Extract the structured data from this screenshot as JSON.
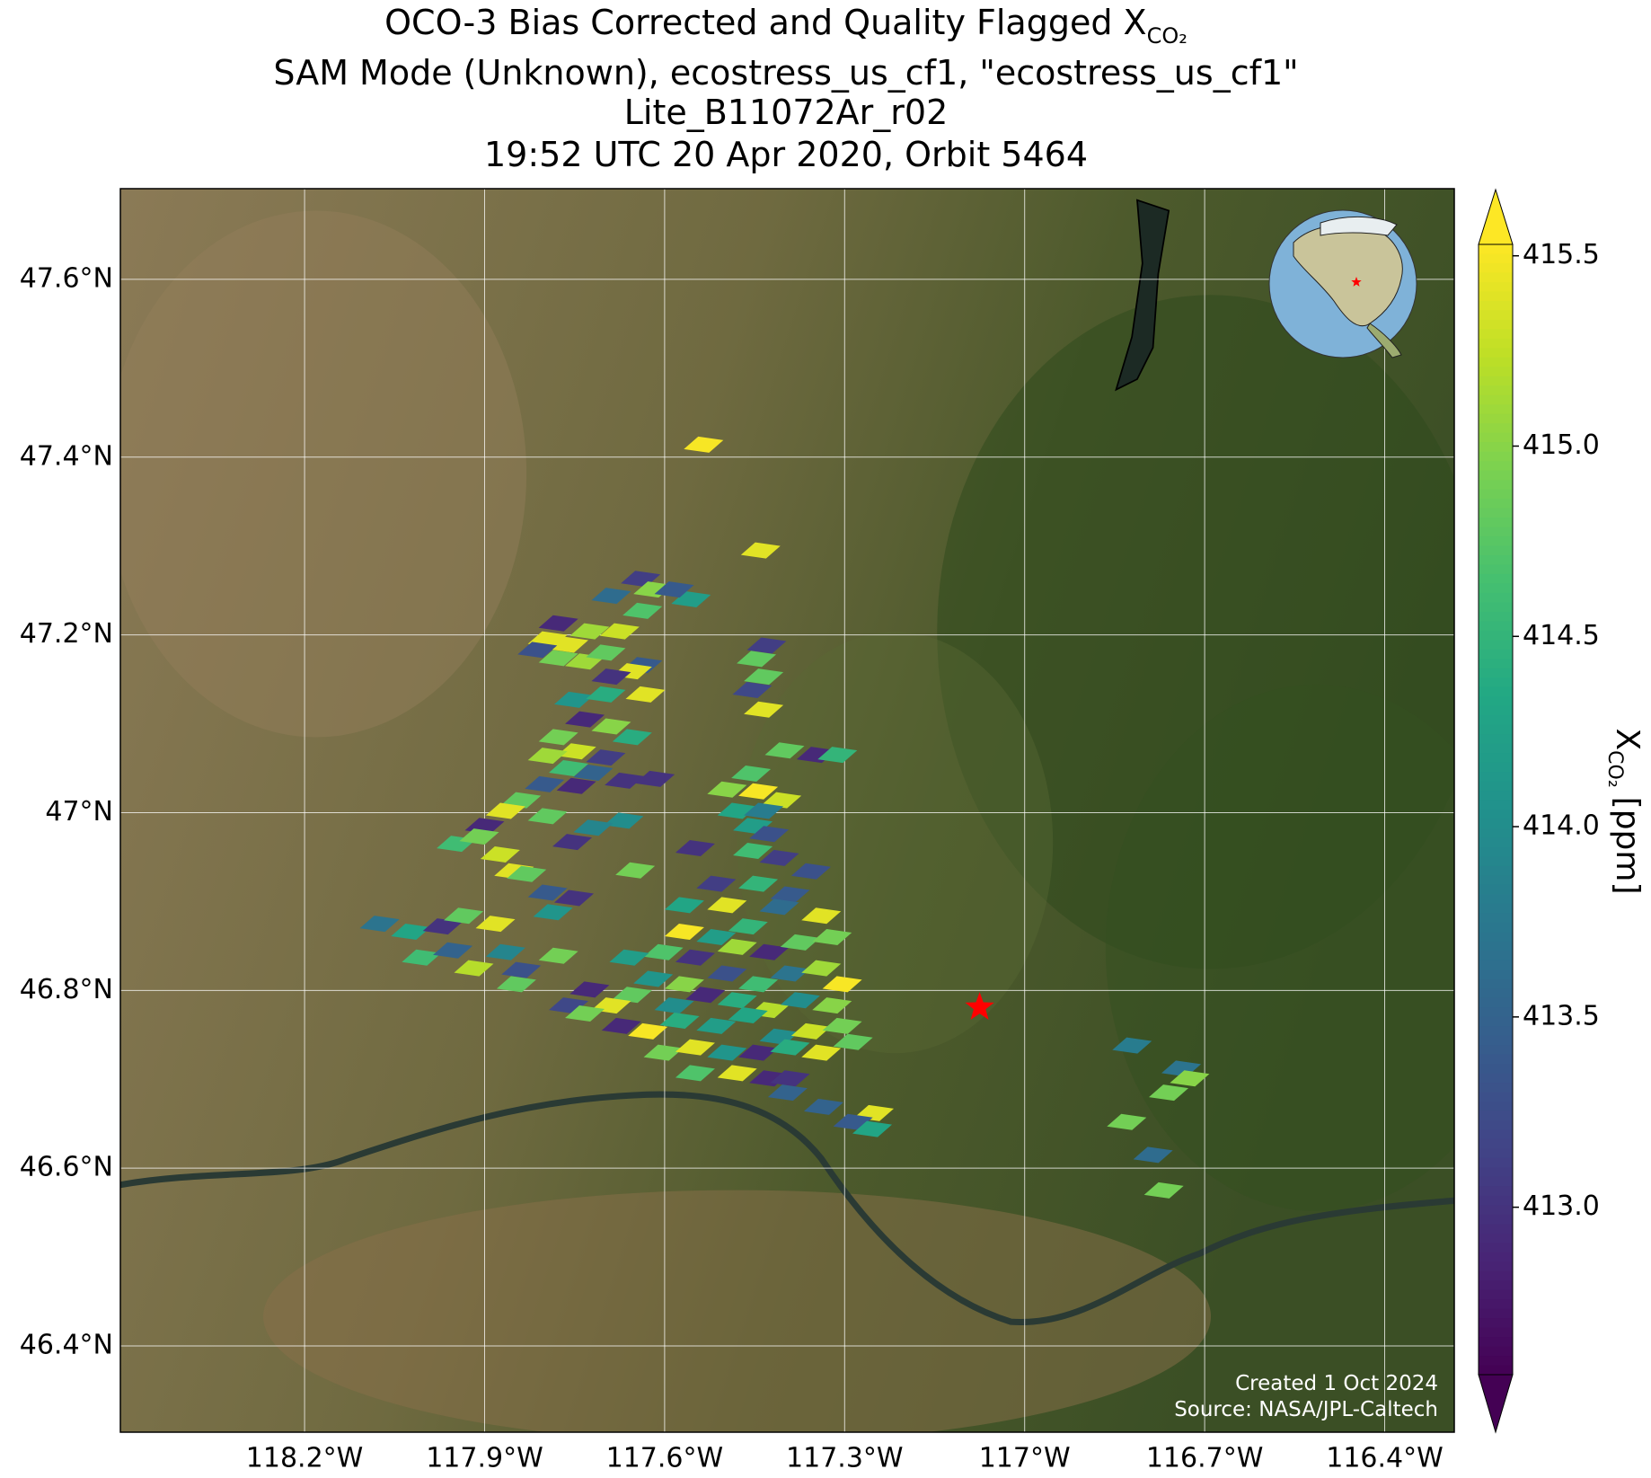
{
  "chart_data": {
    "type": "map",
    "title": "OCO-3 Bias Corrected and Quality Flagged X",
    "title_subscript": "CO₂",
    "subtitle_lines": [
      "SAM Mode (Unknown), ecostress_us_cf1, \"ecostress_us_cf1\"",
      "Lite_B11072Ar_r02",
      "19:52 UTC 20 Apr 2020, Orbit 5464"
    ],
    "xlim": [
      -118.507,
      -116.284
    ],
    "ylim": [
      46.303,
      47.702
    ],
    "xticks": [
      {
        "value": -118.2,
        "label": "118.2°W"
      },
      {
        "value": -117.9,
        "label": "117.9°W"
      },
      {
        "value": -117.6,
        "label": "117.6°W"
      },
      {
        "value": -117.3,
        "label": "117.3°W"
      },
      {
        "value": -117,
        "label": "117°W"
      },
      {
        "value": -116.7,
        "label": "116.7°W"
      },
      {
        "value": -116.4,
        "label": "116.4°W"
      }
    ],
    "yticks": [
      {
        "value": 46.4,
        "label": "46.4°N"
      },
      {
        "value": 46.6,
        "label": "46.6°N"
      },
      {
        "value": 46.8,
        "label": "46.8°N"
      },
      {
        "value": 47,
        "label": "47°N"
      },
      {
        "value": 47.2,
        "label": "47.2°N"
      },
      {
        "value": 47.4,
        "label": "47.4°N"
      },
      {
        "value": 47.6,
        "label": "47.6°N"
      }
    ],
    "grid": true,
    "grid_color": "#ffffff",
    "colormap": "viridis",
    "clim": [
      412.56,
      415.53
    ],
    "colorbar_extend": "both",
    "colorbar_ticks": [
      {
        "value": 413,
        "label": "413.0"
      },
      413.5,
      {
        "value": 414,
        "label": "414.0"
      },
      414.5,
      {
        "value": 415,
        "label": "415.0"
      },
      415.5
    ],
    "colorbar_label": "X",
    "colorbar_label_subscript": "CO₂",
    "colorbar_units": "[ppm]",
    "target": {
      "lon": -117.075,
      "lat": 46.781,
      "color": "#ff0000"
    },
    "credits": [
      "Created 1 Oct 2024",
      "Source: NASA/JPL-Caltech"
    ],
    "footprints": {
      "lon": [
        -117.535,
        -117.44,
        -117.64,
        -117.619,
        -117.689,
        -117.637,
        -117.556,
        -117.584,
        -117.777,
        -117.795,
        -117.76,
        -117.725,
        -117.675,
        -117.812,
        -117.777,
        -117.733,
        -117.698,
        -117.637,
        -117.654,
        -117.689,
        -117.43,
        -117.447,
        -117.435,
        -117.632,
        -117.751,
        -117.698,
        -117.454,
        -117.435,
        -117.733,
        -117.689,
        -117.777,
        -117.654,
        -117.747,
        -117.698,
        -117.795,
        -117.76,
        -117.719,
        -117.8,
        -117.747,
        -117.667,
        -117.616,
        -117.4,
        -117.347,
        -117.312,
        -117.456,
        -117.496,
        -117.444,
        -117.405,
        -117.479,
        -117.435,
        -117.839,
        -117.865,
        -117.9,
        -117.795,
        -117.668,
        -117.719,
        -117.754,
        -117.947,
        -117.909,
        -117.874,
        -117.549,
        -117.453,
        -117.409,
        -117.356,
        -117.649,
        -117.851,
        -117.83,
        -117.795,
        -117.751,
        -117.786,
        -118.075,
        -118.023,
        -117.97,
        -117.935,
        -117.882,
        -118.005,
        -117.953,
        -117.865,
        -117.918,
        -117.514,
        -117.444,
        -117.391,
        -117.567,
        -117.496,
        -117.409,
        -117.339,
        -117.567,
        -117.514,
        -117.461,
        -117.602,
        -117.549,
        -117.479,
        -117.426,
        -117.374,
        -117.321,
        -117.619,
        -117.567,
        -117.496,
        -117.444,
        -117.391,
        -117.339,
        -117.304,
        -117.654,
        -117.584,
        -117.532,
        -117.479,
        -117.426,
        -117.374,
        -117.321,
        -117.725,
        -117.76,
        -117.689,
        -117.628,
        -117.575,
        -117.514,
        -117.461,
        -117.409,
        -117.356,
        -117.304,
        -117.672,
        -117.602,
        -117.549,
        -117.496,
        -117.444,
        -117.391,
        -117.339,
        -117.286,
        -117.549,
        -117.479,
        -117.426,
        -117.391,
        -117.847,
        -117.839,
        -117.777,
        -117.395,
        -117.335,
        -117.251,
        -117.286,
        -117.254,
        -116.821,
        -116.739,
        -116.725,
        -116.76,
        -116.83,
        -116.786,
        -116.768,
        -117.733,
        -117.453,
        -117.426,
        -117.659
      ],
      "lat": [
        47.414,
        47.295,
        47.263,
        47.251,
        47.244,
        47.227,
        47.24,
        47.251,
        47.213,
        47.195,
        47.189,
        47.204,
        47.204,
        47.183,
        47.174,
        47.17,
        47.18,
        47.166,
        47.159,
        47.153,
        47.188,
        47.173,
        47.153,
        47.133,
        47.127,
        47.133,
        47.138,
        47.116,
        47.105,
        47.097,
        47.085,
        47.085,
        47.069,
        47.062,
        47.064,
        47.05,
        47.045,
        47.032,
        47.03,
        47.036,
        47.038,
        47.07,
        47.065,
        47.065,
        47.044,
        47.026,
        47.024,
        47.014,
        47.002,
        47.002,
        47.014,
        47.002,
        46.985,
        46.996,
        46.991,
        46.983,
        46.967,
        46.965,
        46.973,
        46.953,
        46.96,
        46.957,
        46.949,
        46.934,
        46.935,
        46.934,
        46.931,
        46.91,
        46.904,
        46.888,
        46.875,
        46.866,
        46.872,
        46.884,
        46.875,
        46.837,
        46.845,
        46.843,
        46.825,
        46.92,
        46.92,
        46.908,
        46.896,
        46.896,
        46.894,
        46.884,
        46.866,
        46.86,
        46.872,
        46.843,
        46.837,
        46.849,
        46.843,
        46.854,
        46.86,
        46.813,
        46.807,
        46.819,
        46.807,
        46.819,
        46.825,
        46.807,
        46.795,
        46.783,
        46.795,
        46.789,
        46.778,
        46.789,
        46.783,
        46.801,
        46.783,
        46.783,
        46.754,
        46.766,
        46.76,
        46.772,
        46.748,
        46.754,
        46.76,
        46.76,
        46.73,
        46.736,
        46.73,
        46.73,
        46.736,
        46.73,
        46.742,
        46.707,
        46.707,
        46.701,
        46.701,
        46.807,
        46.823,
        46.839,
        46.685,
        46.669,
        46.662,
        46.652,
        46.644,
        46.738,
        46.712,
        46.701,
        46.685,
        46.652,
        46.615,
        46.575,
        46.774,
        46.985,
        46.976,
        46.837
      ],
      "values": [
        415.5,
        415.4,
        413.1,
        415.0,
        413.6,
        414.7,
        414.2,
        413.4,
        412.9,
        415.4,
        415.4,
        415.1,
        415.3,
        413.3,
        414.9,
        415.1,
        414.8,
        413.4,
        415.4,
        413.0,
        413.1,
        414.8,
        414.8,
        415.4,
        414.1,
        414.4,
        413.2,
        415.4,
        412.9,
        415.0,
        414.9,
        414.4,
        415.3,
        413.1,
        415.1,
        414.6,
        413.5,
        413.4,
        412.9,
        413.0,
        413.0,
        414.8,
        412.9,
        414.5,
        414.7,
        415.0,
        415.5,
        415.3,
        414.3,
        413.8,
        414.8,
        415.4,
        412.9,
        414.8,
        414.0,
        413.9,
        413.0,
        414.6,
        414.9,
        415.3,
        413.0,
        414.6,
        413.1,
        413.3,
        414.9,
        415.4,
        414.8,
        413.4,
        413.0,
        414.1,
        413.7,
        414.3,
        413.0,
        414.8,
        415.4,
        414.6,
        413.5,
        413.9,
        415.2,
        413.1,
        414.5,
        413.4,
        414.3,
        415.4,
        413.6,
        415.4,
        415.5,
        414.2,
        414.5,
        414.7,
        413.0,
        415.1,
        412.9,
        414.8,
        414.9,
        414.1,
        415.0,
        413.3,
        414.6,
        413.7,
        415.1,
        415.5,
        414.8,
        414.0,
        412.9,
        414.4,
        415.2,
        414.0,
        415.0,
        412.9,
        413.2,
        415.4,
        415.5,
        414.4,
        414.2,
        414.3,
        414.0,
        415.3,
        414.9,
        412.9,
        414.9,
        415.4,
        414.1,
        412.9,
        414.4,
        415.4,
        414.8,
        414.7,
        415.4,
        412.9,
        413.0,
        414.8,
        413.3,
        414.9,
        413.5,
        413.5,
        415.4,
        413.4,
        414.3,
        413.8,
        413.7,
        415.0,
        414.9,
        414.9,
        413.6,
        414.9,
        414.9,
        414.2,
        413.3,
        414.2
      ]
    }
  }
}
